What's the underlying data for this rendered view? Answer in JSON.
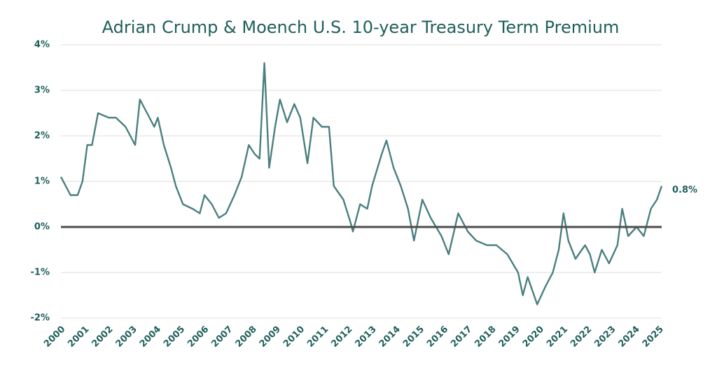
{
  "chart_data": {
    "type": "line",
    "title": "Adrian Crump & Moench U.S. 10-year Treasury Term Premium",
    "annotation": "0.8%",
    "xlim": [
      2000,
      2025.1
    ],
    "xticks": [
      2000,
      2001,
      2002,
      2003,
      2004,
      2005,
      2006,
      2007,
      2008,
      2009,
      2010,
      2011,
      2012,
      2013,
      2014,
      2015,
      2016,
      2017,
      2018,
      2019,
      2020,
      2021,
      2022,
      2023,
      2024,
      2025
    ],
    "ylim": [
      -2,
      4
    ],
    "yticks": [
      {
        "value": -2,
        "label": "-2%"
      },
      {
        "value": -1,
        "label": "-1%"
      },
      {
        "value": 0,
        "label": "0%"
      },
      {
        "value": 1,
        "label": "1%"
      },
      {
        "value": 2,
        "label": "2%"
      },
      {
        "value": 3,
        "label": "3%"
      },
      {
        "value": 4,
        "label": "4%"
      }
    ],
    "grid": true,
    "series": [
      {
        "color": "#4a7f80",
        "x": [
          2000.0,
          2000.4,
          2000.7,
          2000.9,
          2001.1,
          2001.3,
          2001.55,
          2002.0,
          2002.3,
          2002.7,
          2003.1,
          2003.3,
          2003.6,
          2003.9,
          2004.05,
          2004.3,
          2004.6,
          2004.8,
          2005.1,
          2005.5,
          2005.8,
          2006.0,
          2006.3,
          2006.6,
          2006.9,
          2007.25,
          2007.55,
          2007.85,
          2008.1,
          2008.3,
          2008.5,
          2008.7,
          2008.95,
          2009.15,
          2009.45,
          2009.75,
          2010.0,
          2010.3,
          2010.55,
          2010.9,
          2011.2,
          2011.4,
          2011.8,
          2012.1,
          2012.2,
          2012.5,
          2012.8,
          2013.0,
          2013.4,
          2013.6,
          2013.9,
          2014.2,
          2014.5,
          2014.75,
          2015.1,
          2015.45,
          2015.9,
          2016.2,
          2016.6,
          2017.0,
          2017.35,
          2017.8,
          2018.2,
          2018.65,
          2019.1,
          2019.3,
          2019.5,
          2019.9,
          2020.25,
          2020.55,
          2020.8,
          2021.0,
          2021.2,
          2021.5,
          2021.9,
          2022.1,
          2022.3,
          2022.6,
          2022.9,
          2023.25,
          2023.45,
          2023.7,
          2024.05,
          2024.35,
          2024.65,
          2024.9,
          2025.1
        ],
        "values": [
          1.1,
          0.7,
          0.7,
          1.0,
          1.8,
          1.8,
          2.5,
          2.4,
          2.4,
          2.2,
          1.8,
          2.8,
          2.5,
          2.2,
          2.4,
          1.8,
          1.3,
          0.9,
          0.5,
          0.4,
          0.3,
          0.7,
          0.5,
          0.2,
          0.3,
          0.7,
          1.1,
          1.8,
          1.6,
          1.5,
          3.6,
          1.3,
          2.2,
          2.8,
          2.3,
          2.7,
          2.4,
          1.4,
          2.4,
          2.2,
          2.2,
          0.9,
          0.6,
          0.1,
          -0.1,
          0.5,
          0.4,
          0.9,
          1.6,
          1.9,
          1.3,
          0.9,
          0.4,
          -0.3,
          0.6,
          0.2,
          -0.2,
          -0.6,
          0.3,
          -0.1,
          -0.3,
          -0.4,
          -0.4,
          -0.6,
          -1.0,
          -1.5,
          -1.1,
          -1.7,
          -1.3,
          -1.0,
          -0.5,
          0.3,
          -0.3,
          -0.7,
          -0.4,
          -0.6,
          -1.0,
          -0.5,
          -0.8,
          -0.4,
          0.4,
          -0.2,
          0.0,
          -0.2,
          0.4,
          0.6,
          0.9
        ]
      }
    ]
  }
}
